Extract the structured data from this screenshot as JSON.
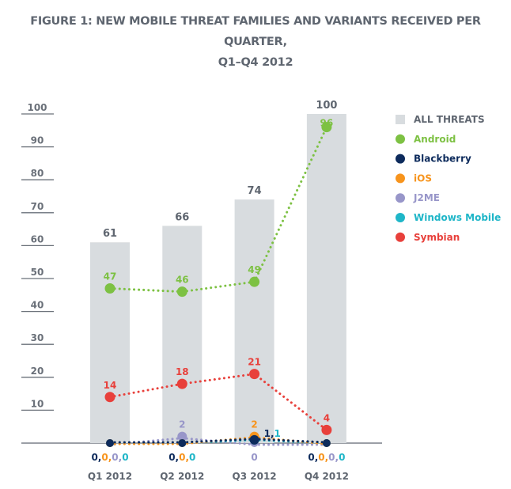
{
  "title_line1": "FIGURE 1: NEW MOBILE THREAT FAMILIES AND VARIANTS RECEIVED PER QUARTER,",
  "title_line2": "Q1–Q4 2012",
  "chart_data": {
    "type": "bar",
    "title": "FIGURE 1: NEW MOBILE THREAT FAMILIES AND VARIANTS RECEIVED PER QUARTER, Q1–Q4 2012",
    "xlabel": "",
    "ylabel": "",
    "ylim": [
      0,
      100
    ],
    "yticks": [
      10,
      20,
      30,
      40,
      50,
      60,
      70,
      80,
      90,
      100
    ],
    "grid": false,
    "legend_position": "right",
    "categories": [
      "Q1 2012",
      "Q2 2012",
      "Q3 2012",
      "Q4 2012"
    ],
    "bars": {
      "name": "ALL THREATS",
      "color": "#d8dcdf",
      "values": [
        61,
        66,
        74,
        100
      ]
    },
    "series": [
      {
        "name": "Android",
        "type": "line",
        "color": "#7dc143",
        "values": [
          47,
          46,
          49,
          96
        ]
      },
      {
        "name": "Blackberry",
        "type": "line",
        "color": "#0d2b5c",
        "values": [
          0,
          0,
          1,
          0
        ]
      },
      {
        "name": "iOS",
        "type": "line",
        "color": "#f7941d",
        "values": [
          0,
          0,
          2,
          0
        ]
      },
      {
        "name": "J2ME",
        "type": "line",
        "color": "#9896c9",
        "values": [
          0,
          2,
          0,
          0
        ]
      },
      {
        "name": "Windows Mobile",
        "type": "line",
        "color": "#1fb6c8",
        "values": [
          0,
          0,
          1,
          0
        ]
      },
      {
        "name": "Symbian",
        "type": "line",
        "color": "#e8403b",
        "values": [
          14,
          18,
          21,
          4
        ]
      }
    ],
    "annotations": {
      "labeled_points": [
        {
          "category": "Q2 2012",
          "series": "J2ME",
          "text": "2"
        },
        {
          "category": "Q3 2012",
          "series": "iOS",
          "text": "2"
        }
      ],
      "bottom_labels": [
        {
          "category": "Q1 2012",
          "parts": [
            {
              "text": "0",
              "series": "Blackberry"
            },
            {
              "text": ",",
              "series": "Blackberry"
            },
            {
              "text": "0",
              "series": "iOS"
            },
            {
              "text": ",",
              "series": "iOS"
            },
            {
              "text": "0",
              "series": "J2ME"
            },
            {
              "text": ",",
              "series": "J2ME"
            },
            {
              "text": "0",
              "series": "Windows Mobile"
            }
          ]
        },
        {
          "category": "Q2 2012",
          "parts": [
            {
              "text": "0",
              "series": "Blackberry"
            },
            {
              "text": ",",
              "series": "Blackberry"
            },
            {
              "text": "0",
              "series": "iOS"
            },
            {
              "text": ",",
              "series": "iOS"
            },
            {
              "text": "0",
              "series": "Windows Mobile"
            }
          ]
        },
        {
          "category": "Q3 2012",
          "parts": [
            {
              "text": "0",
              "series": "J2ME"
            }
          ]
        },
        {
          "category": "Q4 2012",
          "parts": [
            {
              "text": "0",
              "series": "Blackberry"
            },
            {
              "text": ",",
              "series": "Blackberry"
            },
            {
              "text": "0",
              "series": "iOS"
            },
            {
              "text": ",",
              "series": "iOS"
            },
            {
              "text": "0",
              "series": "J2ME"
            },
            {
              "text": ",",
              "series": "J2ME"
            },
            {
              "text": "0",
              "series": "Windows Mobile"
            }
          ]
        }
      ],
      "q3_small_label": [
        {
          "text": "1",
          "series": "Blackberry"
        },
        {
          "text": ",",
          "series": "Blackberry"
        },
        {
          "text": "1",
          "series": "Windows Mobile"
        }
      ]
    }
  }
}
